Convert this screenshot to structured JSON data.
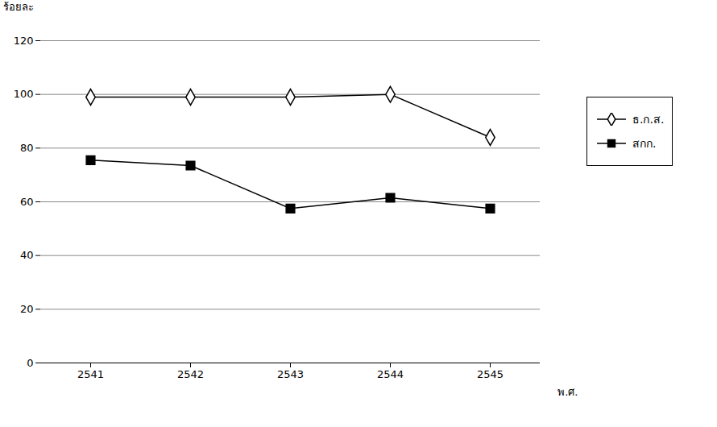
{
  "chart_data": {
    "type": "line",
    "y_label": "ร้อยละ",
    "x_label": "พ.ศ.",
    "categories": [
      "2541",
      "2542",
      "2543",
      "2544",
      "2545"
    ],
    "series": [
      {
        "name": "ธ.ก.ส.",
        "color": "#000000",
        "marker": "diamond",
        "values": [
          99,
          99,
          99,
          100,
          84
        ]
      },
      {
        "name": "สกก.",
        "color": "#000000",
        "marker": "square",
        "values": [
          75.5,
          73.5,
          57.5,
          61.5,
          57.5
        ]
      }
    ],
    "ylim": [
      0,
      120
    ],
    "yticks": [
      0,
      20,
      40,
      60,
      80,
      100,
      120
    ],
    "grid": true,
    "legend": "right"
  }
}
